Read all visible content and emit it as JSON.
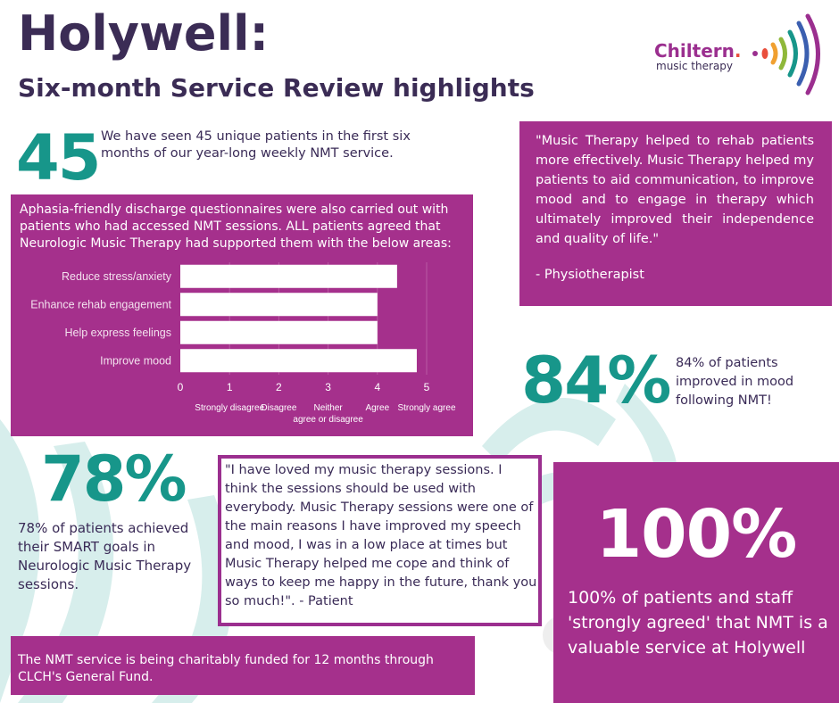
{
  "header": {
    "title": "Holywell:",
    "subtitle": "Six-month Service Review highlights"
  },
  "logo": {
    "name": "Chiltern",
    "dot": ".",
    "tagline": "music therapy"
  },
  "stat_patients": {
    "value": "45",
    "text": "We have seen 45 unique patients in the first six months of our year-long weekly NMT service."
  },
  "questionnaire": {
    "intro": "Aphasia-friendly discharge questionnaires were also carried out with patients who had accessed NMT sessions. ALL patients agreed that Neurologic Music Therapy had supported them with the below areas:"
  },
  "chart_data": {
    "type": "bar",
    "orientation": "horizontal",
    "categories": [
      "Reduce stress/anxiety",
      "Enhance rehab engagement",
      "Help express feelings",
      "Improve mood"
    ],
    "values": [
      4.4,
      4.0,
      4.0,
      4.8
    ],
    "xlim": [
      0,
      5
    ],
    "x_ticks": [
      "0",
      "1",
      "2",
      "3",
      "4",
      "5"
    ],
    "scale_labels": [
      {
        "at": 1,
        "lines": [
          "Strongly disagree"
        ]
      },
      {
        "at": 2,
        "lines": [
          "Disagree"
        ]
      },
      {
        "at": 3,
        "lines": [
          "Neither",
          "agree or disagree"
        ]
      },
      {
        "at": 4,
        "lines": [
          "Agree"
        ]
      },
      {
        "at": 5,
        "lines": [
          "Strongly agree"
        ]
      }
    ],
    "grid": true,
    "bar_color": "#ffffff",
    "background": "#a5308c"
  },
  "quote_physio": {
    "text": "\"Music Therapy helped to rehab patients more effectively. Music Therapy helped my patients to aid communication, to improve mood and to engage in therapy which ultimately improved their independence and quality of life.\"",
    "attribution": "- Physiotherapist"
  },
  "stat_mood": {
    "value": "84%",
    "text": "84% of patients improved in mood following NMT!"
  },
  "stat_goals": {
    "value": "78%",
    "text": "78% of patients achieved their SMART goals in Neurologic Music Therapy sessions."
  },
  "quote_patient": {
    "text": "\"I have loved my music therapy sessions. I think the sessions should be used with everybody. Music Therapy sessions were one of the main reasons I have improved my speech and mood, I was in a low place at times but Music Therapy helped me cope and think of ways to keep me happy in the future, thank you so much!\". - Patient"
  },
  "stat_value": {
    "value": "100%",
    "text": "100% of patients and staff 'strongly agreed' that NMT is a valuable service at Holywell"
  },
  "funding": {
    "text": "The NMT service is being charitably funded for 12 months through CLCH's General Fund."
  },
  "colors": {
    "purple": "#a5308c",
    "teal": "#17968a",
    "navy": "#3b2c55"
  }
}
